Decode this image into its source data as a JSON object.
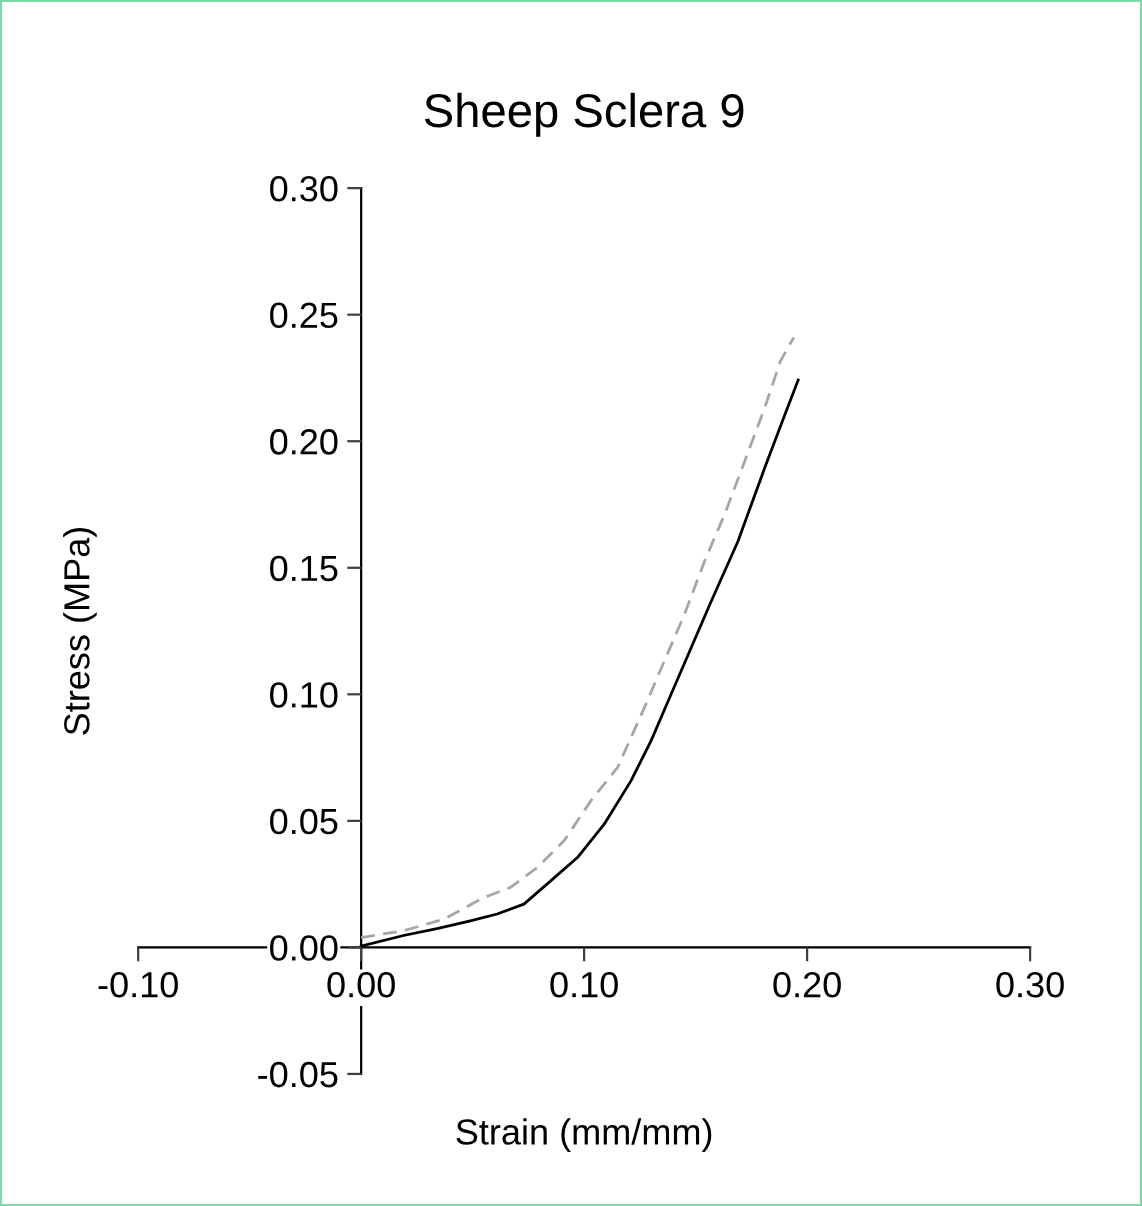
{
  "chart_data": {
    "type": "line",
    "title": "Sheep Sclera 9",
    "xlabel": "Strain (mm/mm)",
    "ylabel": "Stress (MPa)",
    "xlim": [
      -0.1,
      0.3
    ],
    "xticks": [
      {
        "value": -0.1,
        "label": "-0.10"
      },
      {
        "value": 0,
        "label": "0.00"
      },
      {
        "value": 0.1,
        "label": "0.10"
      },
      {
        "value": 0.2,
        "label": "0.20"
      },
      {
        "value": 0.3,
        "label": "0.30"
      }
    ],
    "ylim": [
      -0.05,
      0.3
    ],
    "yticks": [
      {
        "value": -0.05,
        "label": "-0.05"
      },
      {
        "value": 0,
        "label": "0.00"
      },
      {
        "value": 0.05,
        "label": "0.05"
      },
      {
        "value": 0.1,
        "label": "0.10"
      },
      {
        "value": 0.15,
        "label": "0.15"
      },
      {
        "value": 0.2,
        "label": "0.20"
      },
      {
        "value": 0.25,
        "label": "0.25"
      },
      {
        "value": 0.3,
        "label": "0.30"
      }
    ],
    "grid": false,
    "marker": "none",
    "series": [
      {
        "color": "#a6a6a6",
        "line_style": "dashed",
        "x": [
          0,
          0.019,
          0.037,
          0.055,
          0.067,
          0.079,
          0.091,
          0.103,
          0.115,
          0.127,
          0.136,
          0.145,
          0.154,
          0.163,
          0.172,
          0.181,
          0.188,
          0.194
        ],
        "values": [
          0.0039,
          0.0066,
          0.0111,
          0.0197,
          0.0237,
          0.0316,
          0.0421,
          0.0579,
          0.0711,
          0.0947,
          0.1132,
          0.1316,
          0.1526,
          0.1711,
          0.1921,
          0.2132,
          0.2316,
          0.241
        ]
      },
      {
        "color": "#000000",
        "line_style": "solid",
        "x": [
          0,
          0.019,
          0.034,
          0.049,
          0.061,
          0.073,
          0.085,
          0.097,
          0.109,
          0.121,
          0.13,
          0.139,
          0.148,
          0.157,
          0.169,
          0.181,
          0.19,
          0.196
        ],
        "values": [
          0.0005,
          0.0047,
          0.0074,
          0.0105,
          0.0132,
          0.0171,
          0.0263,
          0.0355,
          0.0487,
          0.0658,
          0.0816,
          0.1,
          0.1184,
          0.1368,
          0.1605,
          0.1895,
          0.2105,
          0.2242
        ]
      }
    ]
  }
}
